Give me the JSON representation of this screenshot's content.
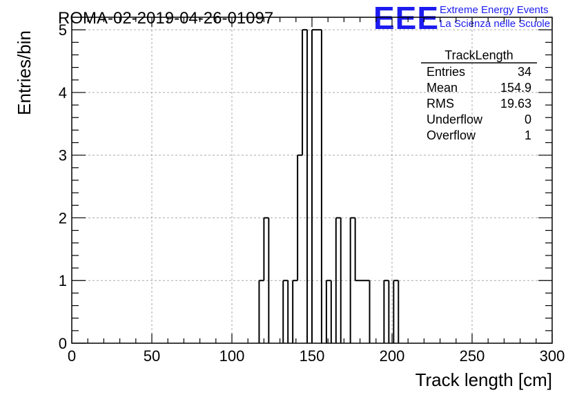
{
  "header": {
    "run_title": "ROMA-02-2019-04-26-01097",
    "logo_text": "EEE",
    "logo_line1": "Extreme Energy Events",
    "logo_line2": "La Scienza nelle Scuole",
    "brand_color": "#1c1cf0"
  },
  "stats": {
    "title": "TrackLength",
    "rows": [
      {
        "label": "Entries",
        "value": "34"
      },
      {
        "label": "Mean",
        "value": "154.9"
      },
      {
        "label": "RMS",
        "value": "19.63"
      },
      {
        "label": "Underflow",
        "value": "0"
      },
      {
        "label": "Overflow",
        "value": "1"
      }
    ]
  },
  "chart_data": {
    "type": "bar",
    "histogram": true,
    "xlabel": "Track length [cm]",
    "ylabel": "Entries/bin",
    "xlim": [
      0,
      300
    ],
    "ylim": [
      0,
      5.2
    ],
    "grid": true,
    "x_ticks": [
      "0",
      "50",
      "100",
      "150",
      "200",
      "250",
      "300"
    ],
    "y_ticks": [
      "0",
      "1",
      "2",
      "3",
      "4",
      "5"
    ],
    "bin_width": 3,
    "bins": [
      {
        "x": 117,
        "value": 1
      },
      {
        "x": 120,
        "value": 2
      },
      {
        "x": 132,
        "value": 1
      },
      {
        "x": 138,
        "value": 1
      },
      {
        "x": 141,
        "value": 3
      },
      {
        "x": 144,
        "value": 5
      },
      {
        "x": 150,
        "value": 5
      },
      {
        "x": 153,
        "value": 5
      },
      {
        "x": 159,
        "value": 1
      },
      {
        "x": 165,
        "value": 2
      },
      {
        "x": 174,
        "value": 2
      },
      {
        "x": 177,
        "value": 1
      },
      {
        "x": 180,
        "value": 1
      },
      {
        "x": 183,
        "value": 1
      },
      {
        "x": 195,
        "value": 1
      },
      {
        "x": 201,
        "value": 1
      }
    ]
  }
}
